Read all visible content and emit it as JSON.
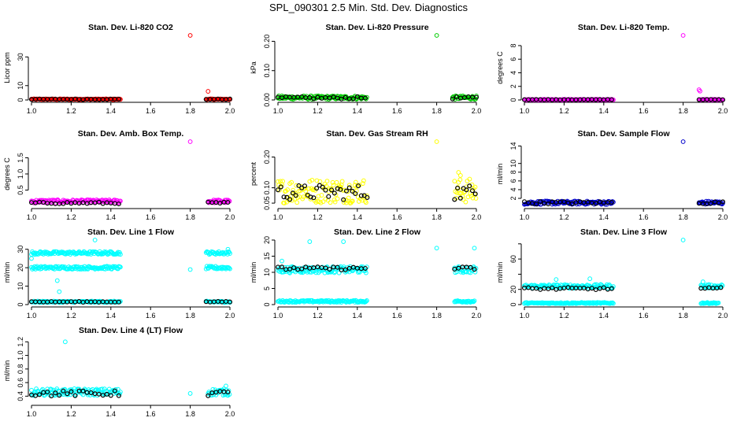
{
  "title": "SPL_090301  2.5 Min. Std. Dev. Diagnostics",
  "colors": {
    "red": "#ff0000",
    "green": "#00cc00",
    "magenta": "#ff00ff",
    "yellow": "#ffff00",
    "blue": "#0000cc",
    "cyan": "#00ffff",
    "black": "#000000"
  },
  "chart_data": [
    {
      "type": "scatter",
      "title": "Stan. Dev. Li-820 CO2",
      "ylabel": "Licor ppm",
      "xlim": [
        1.0,
        2.0
      ],
      "ylim": [
        0,
        45
      ],
      "xticks": [
        1.0,
        1.2,
        1.4,
        1.6,
        1.8,
        2.0
      ],
      "xtick_labels": [
        "1.0",
        "1.2",
        "1.4",
        "1.6",
        "1.8",
        "2.0"
      ],
      "yticks": [
        0,
        10,
        30
      ],
      "ytick_labels": [
        "0",
        "10",
        "30"
      ],
      "color": "#ff0000",
      "series": [
        {
          "name": "band",
          "kind": "band",
          "x_ranges": [
            [
              1.0,
              1.45
            ],
            [
              1.88,
              2.0
            ]
          ],
          "y_center": 0.5,
          "spread": 0.3
        },
        {
          "name": "outliers",
          "kind": "points",
          "x": [
            1.8,
            1.89
          ],
          "y": [
            45,
            6
          ]
        },
        {
          "name": "mean",
          "kind": "black",
          "x_ranges": [
            [
              1.0,
              1.45
            ],
            [
              1.88,
              2.0
            ]
          ],
          "y_center": 0.5,
          "spread": 0.2,
          "step": 0.02
        }
      ]
    },
    {
      "type": "scatter",
      "title": "Stan. Dev. Li-820 Pressure",
      "ylabel": "kPa",
      "xlim": [
        1.0,
        2.0
      ],
      "ylim": [
        0,
        0.22
      ],
      "xticks": [
        1.0,
        1.2,
        1.4,
        1.6,
        1.8,
        2.0
      ],
      "xtick_labels": [
        "1.0",
        "1.2",
        "1.4",
        "1.6",
        "1.8",
        "2.0"
      ],
      "yticks": [
        0,
        0.1,
        0.2
      ],
      "ytick_labels": [
        "0.00",
        "0.10",
        "0.20"
      ],
      "color": "#00cc00",
      "series": [
        {
          "name": "band",
          "kind": "band",
          "x_ranges": [
            [
              1.0,
              1.45
            ],
            [
              1.88,
              2.0
            ]
          ],
          "y_center": 0.008,
          "spread": 0.006
        },
        {
          "name": "outliers",
          "kind": "points",
          "x": [
            1.8
          ],
          "y": [
            0.22
          ]
        },
        {
          "name": "mean",
          "kind": "black",
          "x_ranges": [
            [
              1.0,
              1.45
            ],
            [
              1.88,
              2.0
            ]
          ],
          "y_center": 0.007,
          "spread": 0.004,
          "step": 0.02
        }
      ]
    },
    {
      "type": "scatter",
      "title": "Stan. Dev. Li-820 Temp.",
      "ylabel": "degrees C",
      "xlim": [
        1.0,
        2.0
      ],
      "ylim": [
        0,
        9.5
      ],
      "xticks": [
        1.0,
        1.2,
        1.4,
        1.6,
        1.8,
        2.0
      ],
      "xtick_labels": [
        "1.0",
        "1.2",
        "1.4",
        "1.6",
        "1.8",
        "2.0"
      ],
      "yticks": [
        0,
        2,
        4,
        6,
        8
      ],
      "ytick_labels": [
        "0",
        "2",
        "4",
        "6",
        "8"
      ],
      "color": "#ff00ff",
      "series": [
        {
          "name": "band",
          "kind": "band",
          "x_ranges": [
            [
              1.0,
              1.45
            ],
            [
              1.88,
              2.0
            ]
          ],
          "y_center": 0.05,
          "spread": 0.05
        },
        {
          "name": "outliers",
          "kind": "points",
          "x": [
            1.8,
            1.88,
            1.885
          ],
          "y": [
            9.5,
            1.5,
            1.3
          ]
        },
        {
          "name": "mean",
          "kind": "black",
          "x_ranges": [
            [
              1.0,
              1.45
            ],
            [
              1.88,
              2.0
            ]
          ],
          "y_center": 0.05,
          "spread": 0.03,
          "step": 0.02
        }
      ]
    },
    {
      "type": "scatter",
      "title": "Stan. Dev. Amb. Box Temp.",
      "ylabel": "degrees C",
      "xlim": [
        1.0,
        2.0
      ],
      "ylim": [
        0,
        2.0
      ],
      "xticks": [
        1.0,
        1.2,
        1.4,
        1.6,
        1.8,
        2.0
      ],
      "xtick_labels": [
        "1.0",
        "1.2",
        "1.4",
        "1.6",
        "1.8",
        "2.0"
      ],
      "yticks": [
        0.5,
        1.0,
        1.5
      ],
      "ytick_labels": [
        "0.5",
        "1.0",
        "1.5"
      ],
      "color": "#ff00ff",
      "series": [
        {
          "name": "band",
          "kind": "band",
          "x_ranges": [
            [
              1.0,
              1.45
            ],
            [
              1.89,
              2.0
            ]
          ],
          "y_center": 0.15,
          "spread": 0.05
        },
        {
          "name": "outliers",
          "kind": "points",
          "x": [
            1.8
          ],
          "y": [
            2.0
          ]
        },
        {
          "name": "mean",
          "kind": "black",
          "x_ranges": [
            [
              1.0,
              1.45
            ],
            [
              1.89,
              2.0
            ]
          ],
          "y_center": 0.1,
          "spread": 0.03,
          "step": 0.02
        }
      ]
    },
    {
      "type": "scatter",
      "title": "Stan. Dev. Gas Stream RH",
      "ylabel": "percent",
      "xlim": [
        1.0,
        2.0
      ],
      "ylim": [
        0.04,
        0.25
      ],
      "xticks": [
        1.0,
        1.2,
        1.4,
        1.6,
        1.8,
        2.0
      ],
      "xtick_labels": [
        "1.0",
        "1.2",
        "1.4",
        "1.6",
        "1.8",
        "2.0"
      ],
      "yticks": [
        0.05,
        0.1,
        0.2
      ],
      "ytick_labels": [
        "0.05",
        "0.10",
        "0.20"
      ],
      "color": "#ffff00",
      "series": [
        {
          "name": "band",
          "kind": "band",
          "x_ranges": [
            [
              1.0,
              1.45
            ],
            [
              1.89,
              2.0
            ]
          ],
          "y_center": 0.09,
          "spread": 0.04
        },
        {
          "name": "outliers",
          "kind": "points",
          "x": [
            1.8,
            1.91,
            1.92
          ],
          "y": [
            0.25,
            0.15,
            0.14
          ]
        },
        {
          "name": "mean",
          "kind": "black",
          "x_ranges": [
            [
              1.0,
              1.45
            ],
            [
              1.89,
              2.0
            ]
          ],
          "y_center": 0.085,
          "spread": 0.025,
          "step": 0.015
        }
      ]
    },
    {
      "type": "scatter",
      "title": "Stan. Dev. Sample Flow",
      "ylabel": "ml/min",
      "xlim": [
        1.0,
        2.0
      ],
      "ylim": [
        0.2,
        15
      ],
      "xticks": [
        1.0,
        1.2,
        1.4,
        1.6,
        1.8,
        2.0
      ],
      "xtick_labels": [
        "1.0",
        "1.2",
        "1.4",
        "1.6",
        "1.8",
        "2.0"
      ],
      "yticks": [
        2,
        4,
        6,
        8,
        10,
        14
      ],
      "ytick_labels": [
        "2",
        "4",
        "6",
        "8",
        "10",
        "14"
      ],
      "color": "#0000cc",
      "series": [
        {
          "name": "band",
          "kind": "band",
          "x_ranges": [
            [
              1.0,
              1.45
            ],
            [
              1.88,
              2.0
            ]
          ],
          "y_center": 1.0,
          "spread": 0.4
        },
        {
          "name": "outliers",
          "kind": "points",
          "x": [
            1.8
          ],
          "y": [
            15
          ]
        },
        {
          "name": "mean",
          "kind": "black",
          "x_ranges": [
            [
              1.0,
              1.45
            ],
            [
              1.88,
              2.0
            ]
          ],
          "y_center": 1.0,
          "spread": 0.3,
          "step": 0.02
        }
      ]
    },
    {
      "type": "scatter",
      "title": "Stan. Dev. Line 1 Flow",
      "ylabel": "ml/min",
      "xlim": [
        1.0,
        2.0
      ],
      "ylim": [
        0,
        35
      ],
      "xticks": [
        1.0,
        1.2,
        1.4,
        1.6,
        1.8,
        2.0
      ],
      "xtick_labels": [
        "1.0",
        "1.2",
        "1.4",
        "1.6",
        "1.8",
        "2.0"
      ],
      "yticks": [
        0,
        10,
        20,
        30
      ],
      "ytick_labels": [
        "0",
        "10",
        "20",
        "30"
      ],
      "color": "#00ffff",
      "series": [
        {
          "name": "band-high",
          "kind": "band",
          "x_ranges": [
            [
              1.0,
              1.45
            ],
            [
              1.88,
              2.0
            ]
          ],
          "y_center": 28,
          "spread": 0.8
        },
        {
          "name": "band-mid",
          "kind": "band",
          "x_ranges": [
            [
              1.0,
              1.45
            ],
            [
              1.88,
              2.0
            ]
          ],
          "y_center": 20,
          "spread": 0.8
        },
        {
          "name": "band-low",
          "kind": "band",
          "x_ranges": [
            [
              1.0,
              1.45
            ],
            [
              1.88,
              2.0
            ]
          ],
          "y_center": 1.5,
          "spread": 0.4
        },
        {
          "name": "outliers",
          "kind": "points",
          "x": [
            1.0,
            1.13,
            1.14,
            1.32,
            1.8,
            1.99
          ],
          "y": [
            25,
            13,
            7,
            35,
            19,
            30
          ]
        },
        {
          "name": "mean",
          "kind": "black",
          "x_ranges": [
            [
              1.0,
              1.45
            ],
            [
              1.88,
              2.0
            ]
          ],
          "y_center": 1.5,
          "spread": 0.2,
          "step": 0.02
        }
      ]
    },
    {
      "type": "scatter",
      "title": "Stan. Dev. Line 2 Flow",
      "ylabel": "ml/min",
      "xlim": [
        1.0,
        2.0
      ],
      "ylim": [
        0,
        20
      ],
      "xticks": [
        1.0,
        1.2,
        1.4,
        1.6,
        1.8,
        2.0
      ],
      "xtick_labels": [
        "1.0",
        "1.2",
        "1.4",
        "1.6",
        "1.8",
        "2.0"
      ],
      "yticks": [
        0,
        5,
        10,
        15,
        20
      ],
      "ytick_labels": [
        "0",
        "5",
        "10",
        "15",
        "20"
      ],
      "color": "#00ffff",
      "series": [
        {
          "name": "band-high",
          "kind": "band",
          "x_ranges": [
            [
              1.0,
              1.45
            ],
            [
              1.89,
              2.0
            ]
          ],
          "y_center": 10.8,
          "spread": 1.0
        },
        {
          "name": "band-low",
          "kind": "band",
          "x_ranges": [
            [
              1.0,
              1.45
            ],
            [
              1.89,
              1.99
            ]
          ],
          "y_center": 1.0,
          "spread": 0.3
        },
        {
          "name": "outliers",
          "kind": "points",
          "x": [
            1.16,
            1.33,
            1.8,
            1.99,
            1.02
          ],
          "y": [
            19.5,
            19.5,
            17.5,
            17.5,
            13.5
          ]
        },
        {
          "name": "mean",
          "kind": "black",
          "x_ranges": [
            [
              1.0,
              1.45
            ],
            [
              1.89,
              2.0
            ]
          ],
          "y_center": 11.2,
          "spread": 0.5,
          "step": 0.02
        }
      ]
    },
    {
      "type": "scatter",
      "title": "Stan. Dev. Line 3 Flow",
      "ylabel": "ml/min",
      "xlim": [
        1.0,
        2.0
      ],
      "ylim": [
        0,
        85
      ],
      "xticks": [
        1.0,
        1.2,
        1.4,
        1.6,
        1.8,
        2.0
      ],
      "xtick_labels": [
        "1.0",
        "1.2",
        "1.4",
        "1.6",
        "1.8",
        "2.0"
      ],
      "yticks": [
        0,
        20,
        40,
        60,
        80
      ],
      "ytick_labels": [
        "0",
        "20",
        "",
        "60",
        ""
      ],
      "color": "#00ffff",
      "series": [
        {
          "name": "band-high",
          "kind": "band",
          "x_ranges": [
            [
              1.0,
              1.45
            ],
            [
              1.89,
              2.0
            ]
          ],
          "y_center": 24,
          "spread": 2.5
        },
        {
          "name": "band-low",
          "kind": "band",
          "x_ranges": [
            [
              1.0,
              1.45
            ],
            [
              1.89,
              1.98
            ]
          ],
          "y_center": 2,
          "spread": 0.8
        },
        {
          "name": "outliers",
          "kind": "points",
          "x": [
            1.16,
            1.33,
            1.8,
            1.9
          ],
          "y": [
            33,
            34,
            85,
            30
          ]
        },
        {
          "name": "mean",
          "kind": "black",
          "x_ranges": [
            [
              1.0,
              1.45
            ],
            [
              1.89,
              2.0
            ]
          ],
          "y_center": 21,
          "spread": 1.5,
          "step": 0.02
        }
      ]
    },
    {
      "type": "scatter",
      "title": "Stan. Dev. Line 4 (LT) Flow",
      "ylabel": "ml/min",
      "xlim": [
        1.0,
        2.0
      ],
      "ylim": [
        0.3,
        1.25
      ],
      "xticks": [
        1.0,
        1.2,
        1.4,
        1.6,
        1.8,
        2.0
      ],
      "xtick_labels": [
        "1.0",
        "1.2",
        "1.4",
        "1.6",
        "1.8",
        "2.0"
      ],
      "yticks": [
        0.4,
        0.6,
        0.8,
        1.0,
        1.2
      ],
      "ytick_labels": [
        "0.4",
        "0.6",
        "0.8",
        "1.0",
        "1.2"
      ],
      "color": "#00ffff",
      "series": [
        {
          "name": "band",
          "kind": "band",
          "x_ranges": [
            [
              1.0,
              1.45
            ],
            [
              1.89,
              2.0
            ]
          ],
          "y_center": 0.46,
          "spread": 0.05
        },
        {
          "name": "outliers",
          "kind": "points",
          "x": [
            1.17,
            1.8,
            1.98
          ],
          "y": [
            1.2,
            0.44,
            0.55
          ]
        },
        {
          "name": "mean",
          "kind": "black",
          "x_ranges": [
            [
              1.0,
              1.45
            ],
            [
              1.89,
              2.0
            ]
          ],
          "y_center": 0.44,
          "spread": 0.04,
          "step": 0.02
        }
      ]
    }
  ]
}
